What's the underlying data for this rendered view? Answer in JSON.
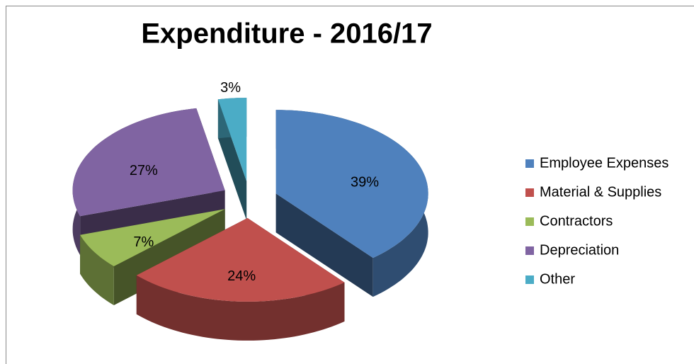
{
  "chart_data": {
    "type": "pie",
    "title": "Expenditure - 2016/17",
    "categories": [
      "Employee Expenses",
      "Material & Supplies",
      "Contractors",
      "Depreciation",
      "Other"
    ],
    "values": [
      39,
      24,
      7,
      27,
      3
    ],
    "value_labels": [
      "39%",
      "24%",
      "7%",
      "27%",
      "3%"
    ],
    "colors": [
      "#4f81bd",
      "#c0504d",
      "#9bbb59",
      "#8064a2",
      "#4bacc6"
    ],
    "legend": "right"
  }
}
